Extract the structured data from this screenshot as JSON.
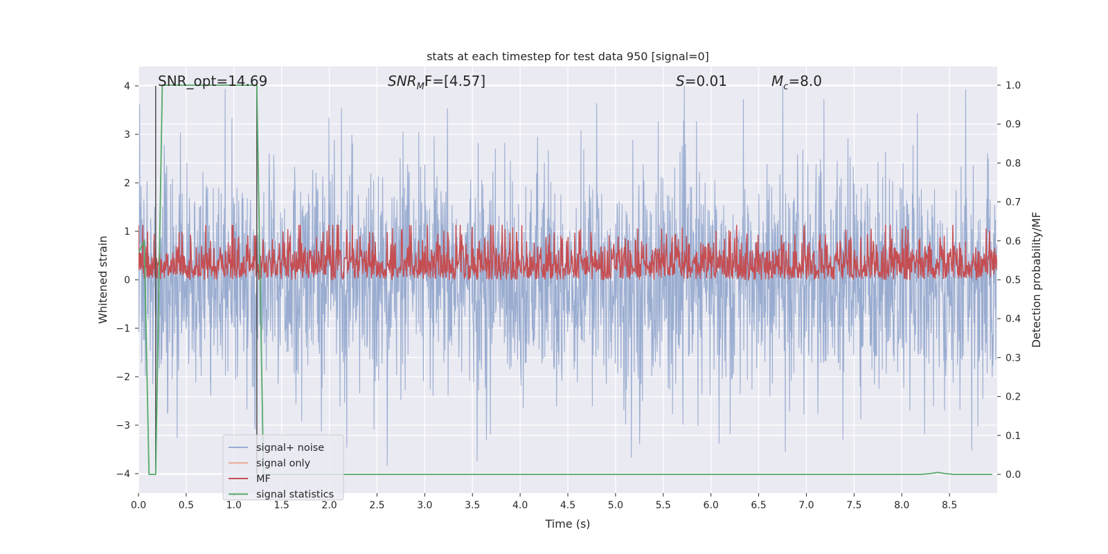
{
  "chart_data": {
    "type": "line",
    "title": "stats at each timestep for test data 950 [signal=0]",
    "xlabel": "Time (s)",
    "ylabel": "Whitened strain",
    "y2label": "Detection probability/MF",
    "xlim": [
      0,
      9.0
    ],
    "ylim": [
      -4.4,
      4.4
    ],
    "y2lim": [
      -0.048,
      1.048
    ],
    "xticks": [
      "0.0",
      "0.5",
      "1.0",
      "1.5",
      "2.0",
      "2.5",
      "3.0",
      "3.5",
      "4.0",
      "4.5",
      "5.0",
      "5.5",
      "6.0",
      "6.5",
      "7.0",
      "7.5",
      "8.0",
      "8.5"
    ],
    "yticks": [
      "−4",
      "−3",
      "−2",
      "−1",
      "0",
      "1",
      "2",
      "3",
      "4"
    ],
    "y2ticks": [
      "0.0",
      "0.1",
      "0.2",
      "0.3",
      "0.4",
      "0.5",
      "0.6",
      "0.7",
      "0.8",
      "0.9",
      "1.0"
    ],
    "grid": true,
    "legend_position": "lower-left",
    "annotations": {
      "snr_opt": "SNR_opt=14.69",
      "snr_mf_main": "SNR",
      "snr_mf_sub": "M",
      "snr_mf_rest": "F=[4.57]",
      "s_main": "S",
      "s_rest": "=0.01",
      "mc_main": "M",
      "mc_sub": "c",
      "mc_rest": "=8.0"
    },
    "vlines_x": [
      0.18,
      1.24
    ],
    "series": [
      {
        "name": "signal+ noise",
        "axis": "left",
        "color": "#99acd0",
        "description_values": {
          "amplitude_typical": 1.5,
          "amplitude_peak": 4.0
        }
      },
      {
        "name": "signal only",
        "axis": "left",
        "color": "#e8a990",
        "values": []
      },
      {
        "name": "MF",
        "axis": "right",
        "color": "#c44e52",
        "description_values": {
          "baseline": 0.5,
          "typical_range": [
            0.5,
            0.62
          ],
          "peak": 0.64
        }
      },
      {
        "name": "signal statistics",
        "axis": "right",
        "color": "#55a868",
        "x": [
          0.0,
          0.06,
          0.11,
          0.18,
          0.25,
          0.3,
          1.24,
          1.31,
          1.4,
          8.2,
          8.3,
          8.38,
          8.45,
          8.55,
          8.95
        ],
        "y": [
          0.57,
          0.6,
          0.0,
          0.0,
          1.0,
          1.0,
          1.0,
          0.0,
          0.0,
          0.0,
          0.002,
          0.005,
          0.002,
          0.0,
          0.0
        ]
      }
    ]
  }
}
